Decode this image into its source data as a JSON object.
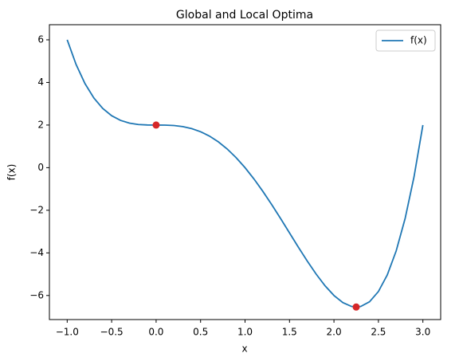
{
  "chart_data": {
    "type": "line",
    "title": "Global and Local Optima",
    "xlabel": "x",
    "ylabel": "f(x)",
    "x": [
      -1.0,
      -0.9,
      -0.8,
      -0.7,
      -0.6,
      -0.5,
      -0.4,
      -0.3,
      -0.2,
      -0.1,
      0.0,
      0.1,
      0.2,
      0.3,
      0.4,
      0.5,
      0.6,
      0.7,
      0.8,
      0.9,
      1.0,
      1.1,
      1.2,
      1.3,
      1.4,
      1.5,
      1.6,
      1.7,
      1.8,
      1.9,
      2.0,
      2.1,
      2.2,
      2.3,
      2.4,
      2.5,
      2.6,
      2.7,
      2.8,
      2.9,
      3.0
    ],
    "series": [
      {
        "name": "f(x)",
        "color": "#1f77b4",
        "values": [
          6,
          4.8431,
          3.9456,
          3.2691,
          2.7776,
          2.4375,
          2.2176,
          2.0891,
          2.0256,
          2.0031,
          2,
          1.9971,
          1.9776,
          1.9271,
          1.8336,
          1.6875,
          1.4816,
          1.2111,
          0.8736,
          0.4691,
          0,
          -0.5289,
          -1.1104,
          -1.7349,
          -2.3904,
          -3.0625,
          -3.7344,
          -4.3869,
          -4.9984,
          -5.5449,
          -6,
          -6.3349,
          -6.5184,
          -6.5169,
          -6.2944,
          -5.8125,
          -5.0304,
          -3.9049,
          -2.3904,
          -0.4389,
          2
        ]
      }
    ],
    "points": {
      "color": "#d62728",
      "x": [
        0,
        2.25
      ],
      "values": [
        2,
        -6.543
      ]
    },
    "xlim": [
      -1.2,
      3.2
    ],
    "ylim": [
      -7.13,
      6.71
    ],
    "xticks": [
      {
        "value": -1,
        "label": "−1.0"
      },
      {
        "value": -0.5,
        "label": "−0.5"
      },
      {
        "value": 0,
        "label": "0.0"
      },
      {
        "value": 0.5,
        "label": "0.5"
      },
      {
        "value": 1,
        "label": "1.0"
      },
      {
        "value": 1.5,
        "label": "1.5"
      },
      {
        "value": 2,
        "label": "2.0"
      },
      {
        "value": 2.5,
        "label": "2.5"
      },
      {
        "value": 3,
        "label": "3.0"
      }
    ],
    "yticks": [
      {
        "value": -6,
        "label": "−6"
      },
      {
        "value": -4,
        "label": "−4"
      },
      {
        "value": -2,
        "label": "−2"
      },
      0,
      2,
      4,
      6
    ],
    "legend": "upper right"
  }
}
